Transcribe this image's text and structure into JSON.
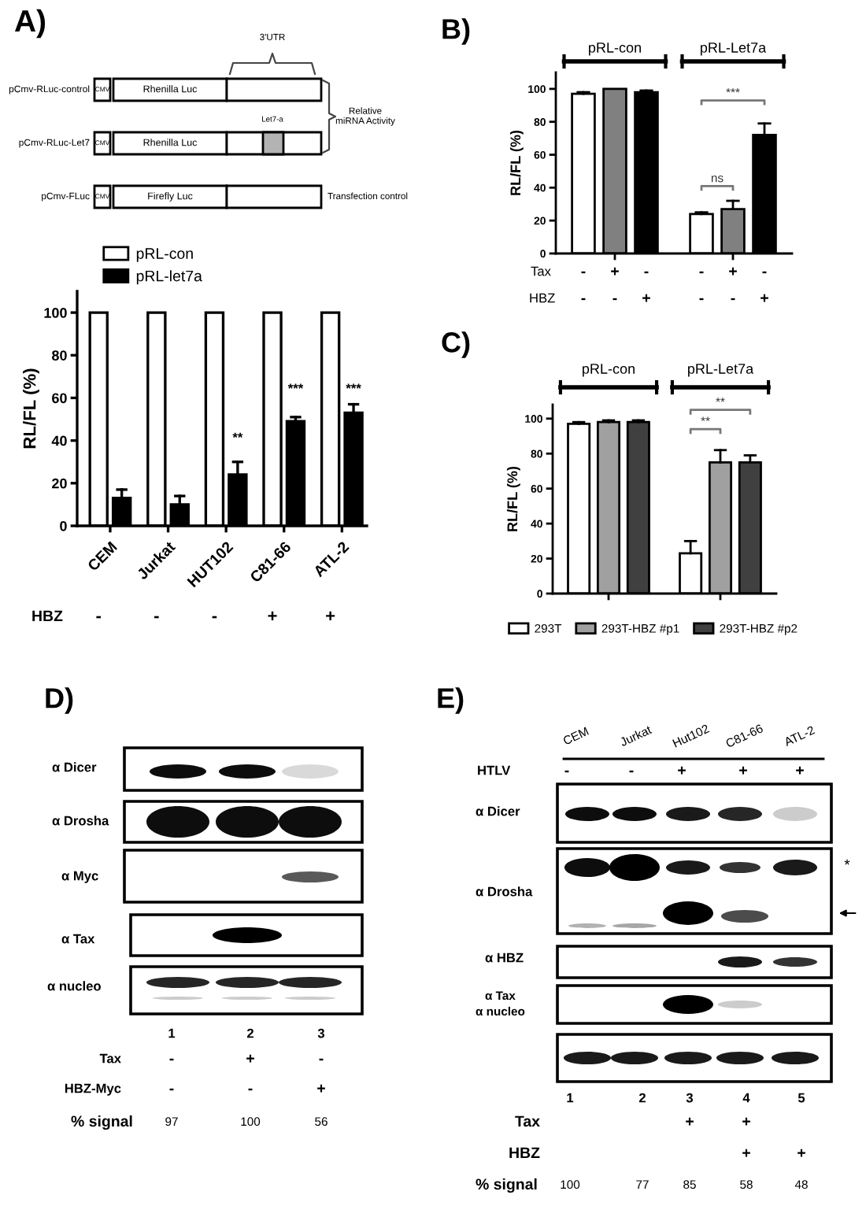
{
  "chart_data": [
    {
      "type": "other",
      "title": "A)",
      "annotations": [
        "3'UTR",
        "pCmv-RLuc-control",
        "CMV",
        "Rhenilla Luc",
        "Let7-a",
        "pCmv-RLuc-Let7",
        "CMV",
        "Rhenilla Luc",
        "Relative\nmiRNA Activity",
        "pCmv-FLuc",
        "CMV",
        "Firefly Luc",
        "Transfection control"
      ]
    },
    {
      "type": "bar",
      "categories": [
        "CEM",
        "Jurkat",
        "HUT102",
        "C81-66",
        "ATL-2"
      ],
      "series": [
        {
          "name": "pRL-con",
          "color": "#ffffff",
          "values": [
            100,
            100,
            100,
            100,
            100
          ]
        },
        {
          "name": "pRL-let7a",
          "color": "#000000",
          "values": [
            13,
            10,
            24,
            49,
            53
          ],
          "errors": [
            [
              13,
              17
            ],
            [
              10,
              14
            ],
            [
              24,
              30
            ],
            [
              49,
              51
            ],
            [
              53,
              57
            ]
          ]
        }
      ],
      "ylabel": "RL/FL (%)",
      "ylim": [
        0,
        110
      ],
      "yticks": [
        0,
        20,
        40,
        60,
        80,
        100
      ],
      "legend": "top left",
      "annotations": [
        {
          "text": "**",
          "x": "HUT102",
          "y": 41
        },
        {
          "text": "***",
          "x": "C81-66",
          "y": 64
        },
        {
          "text": "***",
          "x": "ATL-2",
          "y": 64
        },
        "HBZ",
        "-",
        "-",
        "-",
        "+",
        "+"
      ]
    },
    {
      "type": "bar",
      "title": "B)",
      "categories": [
        "pRL-con",
        "pRL-Let7a"
      ],
      "series": [
        {
          "color": "#ffffff",
          "values": [
            97,
            24
          ],
          "errors": [
            [
              97,
              98
            ],
            [
              24,
              25
            ]
          ]
        },
        {
          "color": "#808080",
          "values": [
            100,
            27
          ],
          "errors": [
            null,
            [
              27,
              32
            ]
          ]
        },
        {
          "color": "#000000",
          "values": [
            98,
            72
          ],
          "errors": [
            [
              98,
              99
            ],
            [
              72,
              79
            ]
          ]
        }
      ],
      "ylabel": "RL/FL (%)",
      "ylim": [
        0,
        110
      ],
      "yticks": [
        0,
        20,
        40,
        60,
        80,
        100
      ],
      "annotations": [
        "ns",
        "***",
        "Tax",
        "-",
        "+",
        "-",
        "-",
        "+",
        "-",
        "HBZ",
        "-",
        "-",
        "+",
        "-",
        "-",
        "+"
      ]
    },
    {
      "type": "bar",
      "title": "C)",
      "categories": [
        "pRL-con",
        "pRL-Let7a"
      ],
      "series": [
        {
          "name": "293T",
          "color": "#ffffff",
          "values": [
            97,
            23
          ],
          "errors": [
            [
              97,
              98
            ],
            [
              23,
              30
            ]
          ]
        },
        {
          "name": "293T-HBZ #p1",
          "color": "#a0a0a0",
          "values": [
            98,
            75
          ],
          "errors": [
            [
              98,
              99
            ],
            [
              75,
              82
            ]
          ]
        },
        {
          "name": "293T-HBZ #p2",
          "color": "#404040",
          "values": [
            98,
            75
          ],
          "errors": [
            [
              98,
              99
            ],
            [
              75,
              79
            ]
          ]
        }
      ],
      "ylabel": "RL/FL (%)",
      "ylim": [
        0,
        108
      ],
      "yticks": [
        0,
        20,
        40,
        60,
        80,
        100
      ],
      "legend": "bottom",
      "annotations": [
        "**",
        "**"
      ]
    },
    {
      "type": "other",
      "title": "D)",
      "categories": [
        "1",
        "2",
        "3"
      ],
      "values": [
        97,
        100,
        56
      ],
      "data_labels": true,
      "annotations": [
        "α Dicer",
        "α Drosha",
        "α Myc",
        "α Tax",
        "α nucleo",
        "Tax",
        "-",
        "+",
        "-",
        "HBZ-Myc",
        "-",
        "-",
        "+",
        "% signal"
      ]
    },
    {
      "type": "other",
      "title": "E)",
      "categories": [
        "1",
        "2",
        "3",
        "4",
        "5"
      ],
      "values": [
        100,
        77,
        85,
        58,
        48
      ],
      "data_labels": true,
      "annotations": [
        "CEM",
        "Jurkat",
        "Hut102",
        "C81-66",
        "ATL-2",
        "HTLV",
        "-",
        "-",
        "+",
        "+",
        "+",
        "α Dicer",
        "α Drosha",
        "α HBZ",
        "α Tax",
        "α nucleo",
        "*",
        "Tax",
        "+",
        "+",
        "HBZ",
        "+",
        "+",
        "% signal"
      ]
    }
  ]
}
